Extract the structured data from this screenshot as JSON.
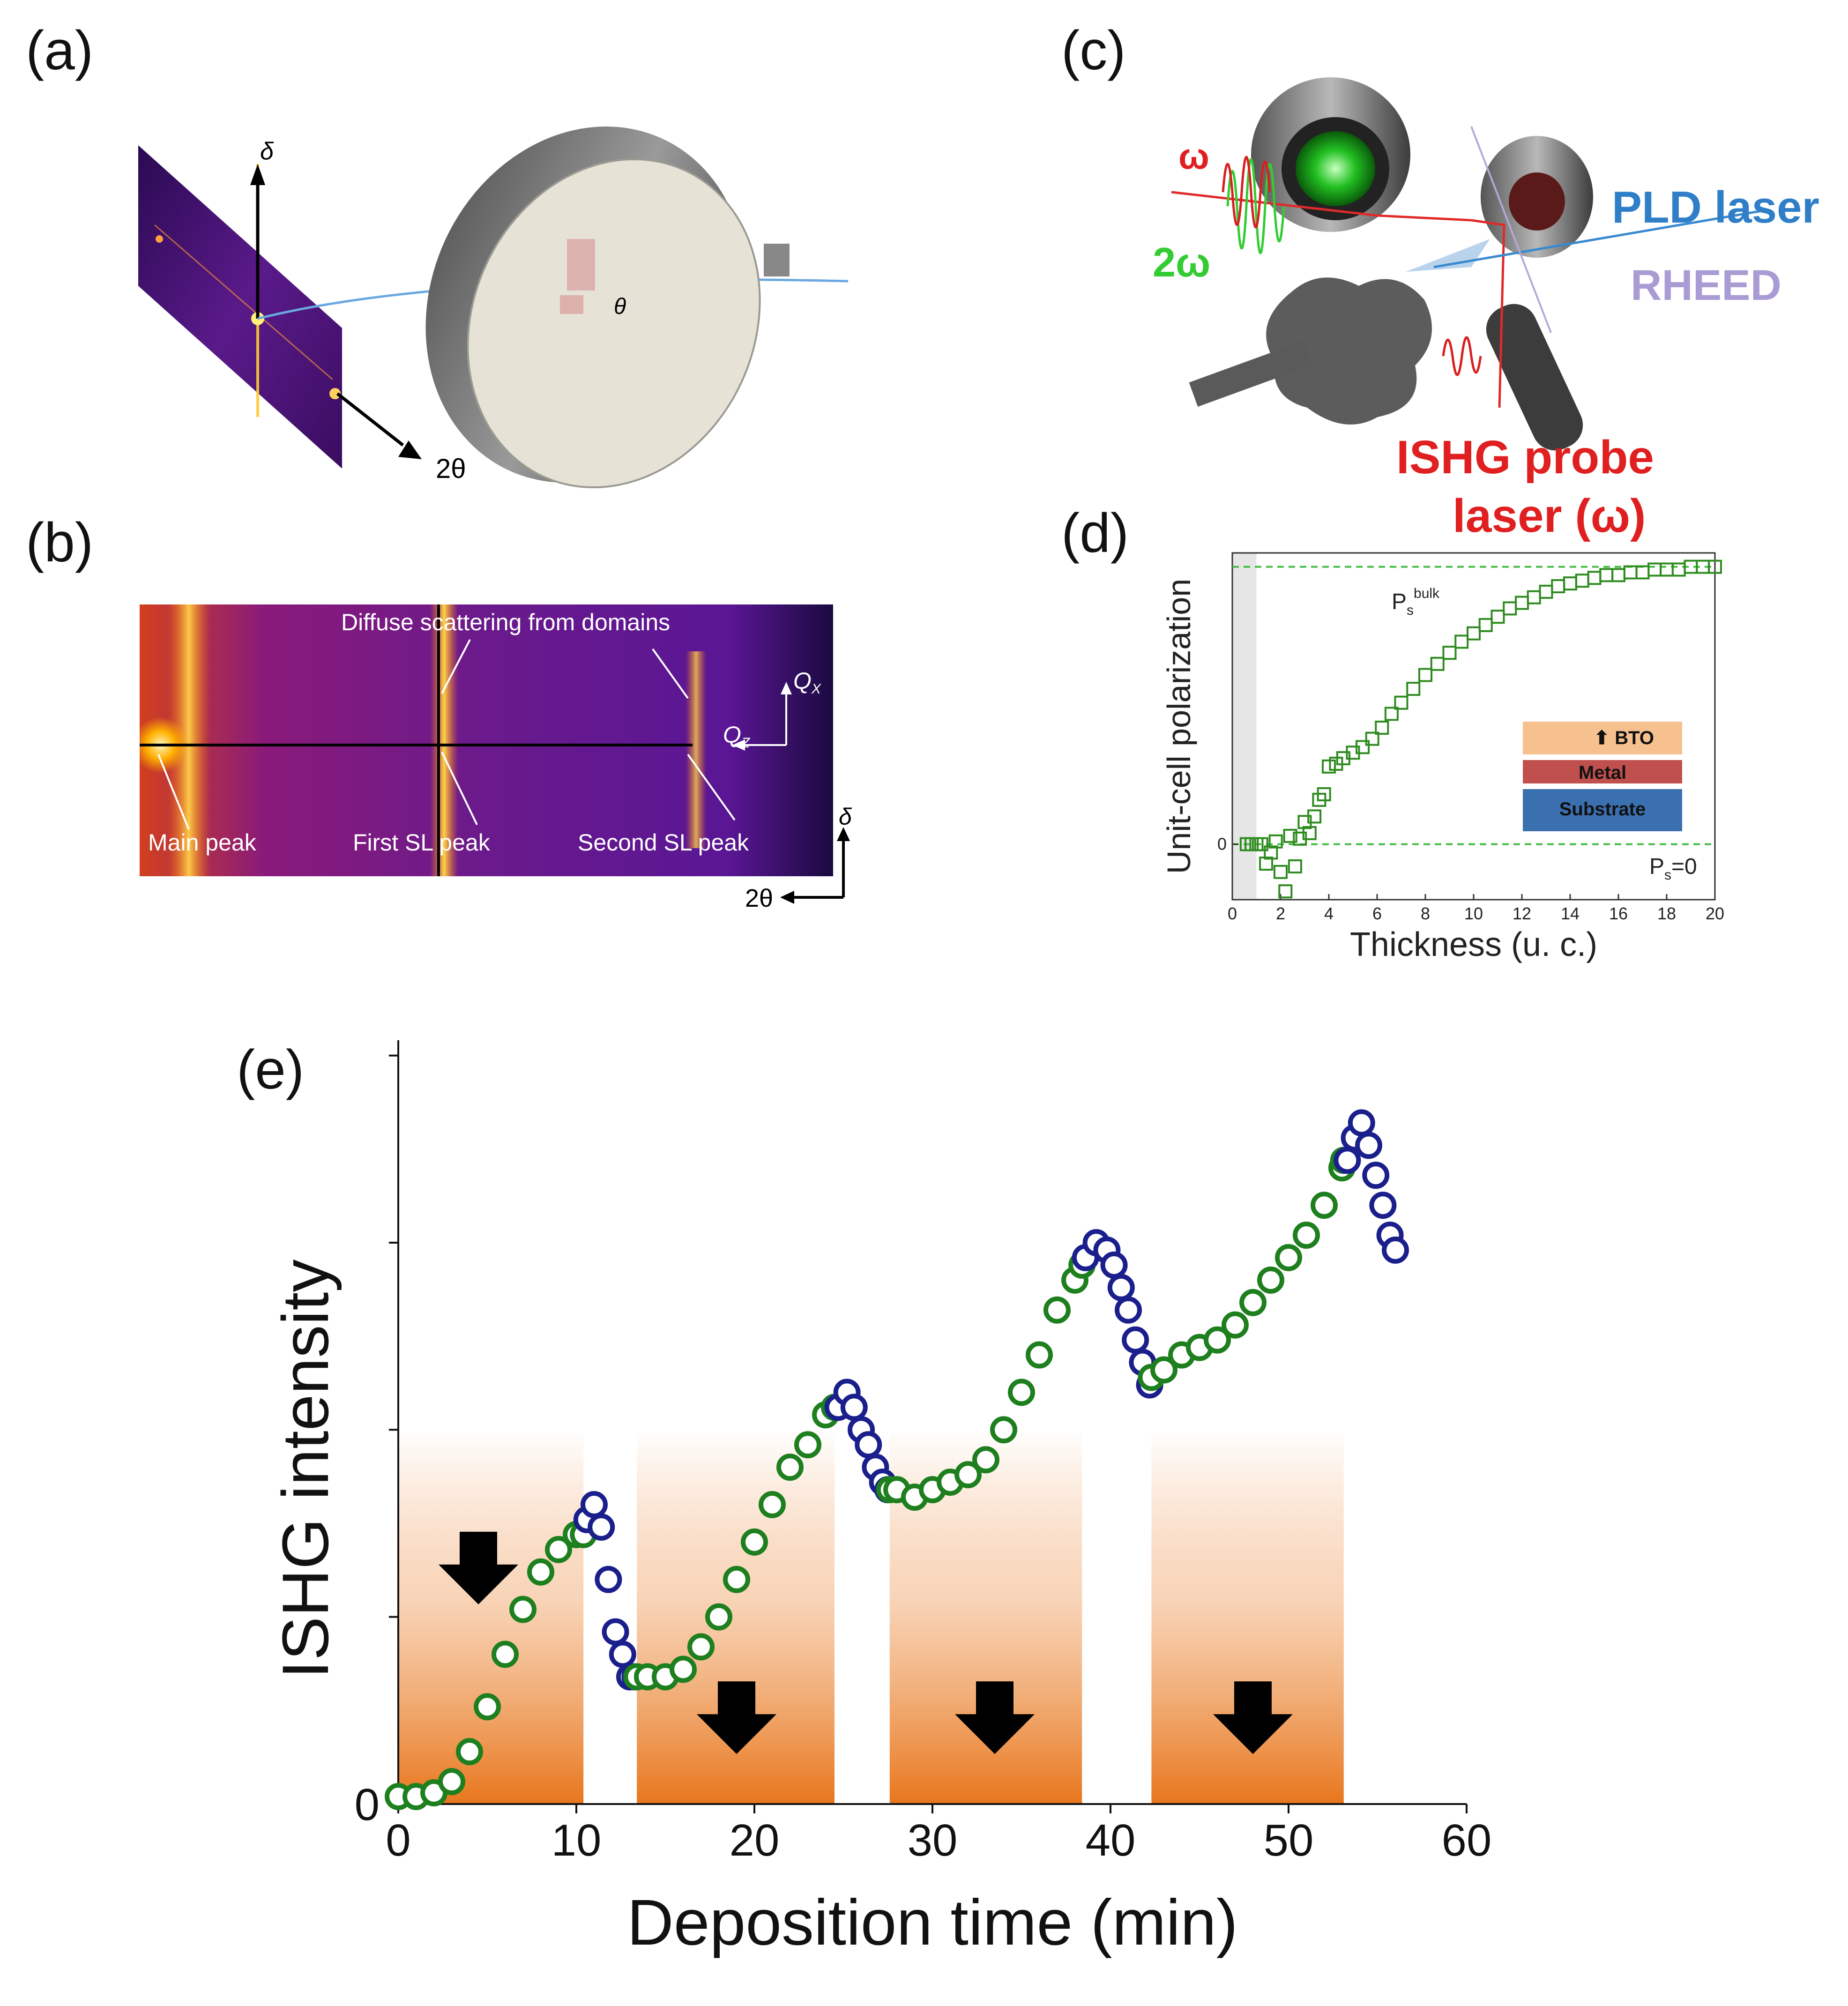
{
  "panels": {
    "a": {
      "label": "(a)",
      "axis_delta": "δ",
      "axis_2theta": "2θ",
      "angle_theta": "θ"
    },
    "b": {
      "label": "(b)",
      "annotations": {
        "diffuse": "Diffuse scattering from domains",
        "main_peak": "Main peak",
        "first_sl": "First SL peak",
        "second_sl": "Second SL peak",
        "qx": "Q",
        "qx_sub": "X",
        "qz": "Q",
        "qz_sub": "Z",
        "delta": "δ",
        "two_theta": "2θ"
      }
    },
    "c": {
      "label": "(c)",
      "omega": "ω",
      "two_omega": "2ω",
      "pld_laser": "PLD laser",
      "rheed": "RHEED",
      "ishg_line1": "ISHG probe",
      "ishg_line2": "laser (ω)"
    },
    "d": {
      "label": "(d)",
      "legend": {
        "bto": "BTO",
        "metal": "Metal",
        "substrate": "Substrate"
      },
      "ps_bulk_main": "P",
      "ps_bulk_sub": "s",
      "ps_bulk_sup": "bulk",
      "ps_zero_main": "P",
      "ps_zero_sub": "s",
      "ps_zero_tail": "=0",
      "colors": {
        "marker": "#2e8b1f",
        "dashed": "#44bb44",
        "bto": "#f6c08f",
        "metal": "#c0504d",
        "substrate": "#3a6fb0"
      }
    },
    "e": {
      "label": "(e)",
      "colors": {
        "growth": "#1e7f1e",
        "pause": "#1a1f8c",
        "shade": "#e8761c"
      }
    }
  },
  "chart_data": [
    {
      "panel": "d",
      "type": "scatter",
      "xlabel": "Thickness (u. c.)",
      "ylabel": "Unit-cell polarization",
      "xlim": [
        0,
        20
      ],
      "xticks": [
        "0",
        "2",
        "4",
        "6",
        "8",
        "10",
        "12",
        "14",
        "16",
        "18",
        "20"
      ],
      "yticks": [
        "0"
      ],
      "ylim": [
        -0.2,
        1.05
      ],
      "reference_lines": [
        0,
        1
      ],
      "series": [
        {
          "x": [
            0.6,
            0.8,
            1.0,
            1.2,
            1.4,
            1.6,
            1.8,
            2.0,
            2.2,
            2.4,
            2.6,
            2.8,
            3.0,
            3.2,
            3.4,
            3.6,
            3.8,
            4.0,
            4.3,
            4.6,
            5.0,
            5.4,
            5.8,
            6.2,
            6.6,
            7.0,
            7.5,
            8.0,
            8.5,
            9.0,
            9.5,
            10.0,
            10.5,
            11.0,
            11.5,
            12.0,
            12.5,
            13.0,
            13.5,
            14.0,
            14.5,
            15.0,
            15.5,
            16.0,
            16.5,
            17.0,
            17.5,
            18.0,
            18.5,
            19.0,
            19.5,
            20.0
          ],
          "y": [
            0.0,
            0.0,
            0.0,
            0.0,
            -0.07,
            -0.03,
            0.01,
            -0.1,
            -0.17,
            0.03,
            -0.08,
            0.02,
            0.08,
            0.04,
            0.1,
            0.16,
            0.18,
            0.28,
            0.29,
            0.31,
            0.33,
            0.35,
            0.38,
            0.42,
            0.47,
            0.51,
            0.56,
            0.61,
            0.65,
            0.69,
            0.73,
            0.76,
            0.79,
            0.82,
            0.85,
            0.87,
            0.89,
            0.91,
            0.93,
            0.94,
            0.95,
            0.96,
            0.97,
            0.97,
            0.98,
            0.98,
            0.99,
            0.99,
            0.99,
            1.0,
            1.0,
            1.0
          ]
        }
      ]
    },
    {
      "panel": "e",
      "type": "scatter",
      "xlabel": "Deposition time (min)",
      "ylabel": "ISHG intensity",
      "xlim": [
        0,
        60
      ],
      "ylim": [
        0,
        1
      ],
      "xticks": [
        "0",
        "10",
        "20",
        "30",
        "40",
        "50",
        "60"
      ],
      "yticks": [
        "0",
        "",
        "",
        "",
        ""
      ],
      "ytick_values": [
        0,
        0.25,
        0.5,
        0.75,
        1.0
      ],
      "deposition_intervals": [
        [
          0,
          10.4
        ],
        [
          13.4,
          24.5
        ],
        [
          27.6,
          38.4
        ],
        [
          42.3,
          53.1
        ]
      ],
      "series": [
        {
          "x": [
            0,
            1,
            2,
            3,
            4,
            5,
            6,
            7,
            8,
            9,
            10,
            10.4
          ],
          "y": [
            0.01,
            0.01,
            0.015,
            0.03,
            0.07,
            0.13,
            0.2,
            0.26,
            0.31,
            0.34,
            0.36,
            0.36
          ]
        },
        {
          "x": [
            10.6,
            11.0,
            11.4,
            11.8,
            12.2,
            12.6,
            13.0,
            13.3
          ],
          "y": [
            0.38,
            0.4,
            0.37,
            0.3,
            0.23,
            0.2,
            0.17,
            0.17
          ]
        },
        {
          "x": [
            13.4,
            14,
            15,
            16,
            17,
            18,
            19,
            20,
            21,
            22,
            23,
            24,
            24.5
          ],
          "y": [
            0.17,
            0.17,
            0.17,
            0.18,
            0.21,
            0.25,
            0.3,
            0.35,
            0.4,
            0.45,
            0.48,
            0.52,
            0.53
          ]
        },
        {
          "x": [
            24.7,
            25.2,
            25.6,
            26.0,
            26.4,
            26.8,
            27.2,
            27.5
          ],
          "y": [
            0.53,
            0.55,
            0.53,
            0.5,
            0.48,
            0.45,
            0.43,
            0.42
          ]
        },
        {
          "x": [
            27.6,
            28,
            29,
            30,
            31,
            32,
            33,
            34,
            35,
            36,
            37,
            38,
            38.4
          ],
          "y": [
            0.42,
            0.42,
            0.41,
            0.42,
            0.43,
            0.44,
            0.46,
            0.5,
            0.55,
            0.6,
            0.66,
            0.7,
            0.72
          ]
        },
        {
          "x": [
            38.6,
            39.2,
            39.8,
            40.2,
            40.6,
            41.0,
            41.4,
            41.8,
            42.2
          ],
          "y": [
            0.73,
            0.75,
            0.74,
            0.72,
            0.69,
            0.66,
            0.62,
            0.59,
            0.56
          ]
        },
        {
          "x": [
            42.3,
            43,
            44,
            45,
            46,
            47,
            48,
            49,
            50,
            51,
            52,
            53,
            53.1
          ],
          "y": [
            0.57,
            0.58,
            0.6,
            0.61,
            0.62,
            0.64,
            0.67,
            0.7,
            0.73,
            0.76,
            0.8,
            0.85,
            0.86
          ]
        },
        {
          "x": [
            53.3,
            53.7,
            54.1,
            54.5,
            54.9,
            55.3,
            55.7,
            56.0
          ],
          "y": [
            0.86,
            0.89,
            0.91,
            0.88,
            0.84,
            0.8,
            0.76,
            0.74
          ]
        }
      ]
    }
  ]
}
